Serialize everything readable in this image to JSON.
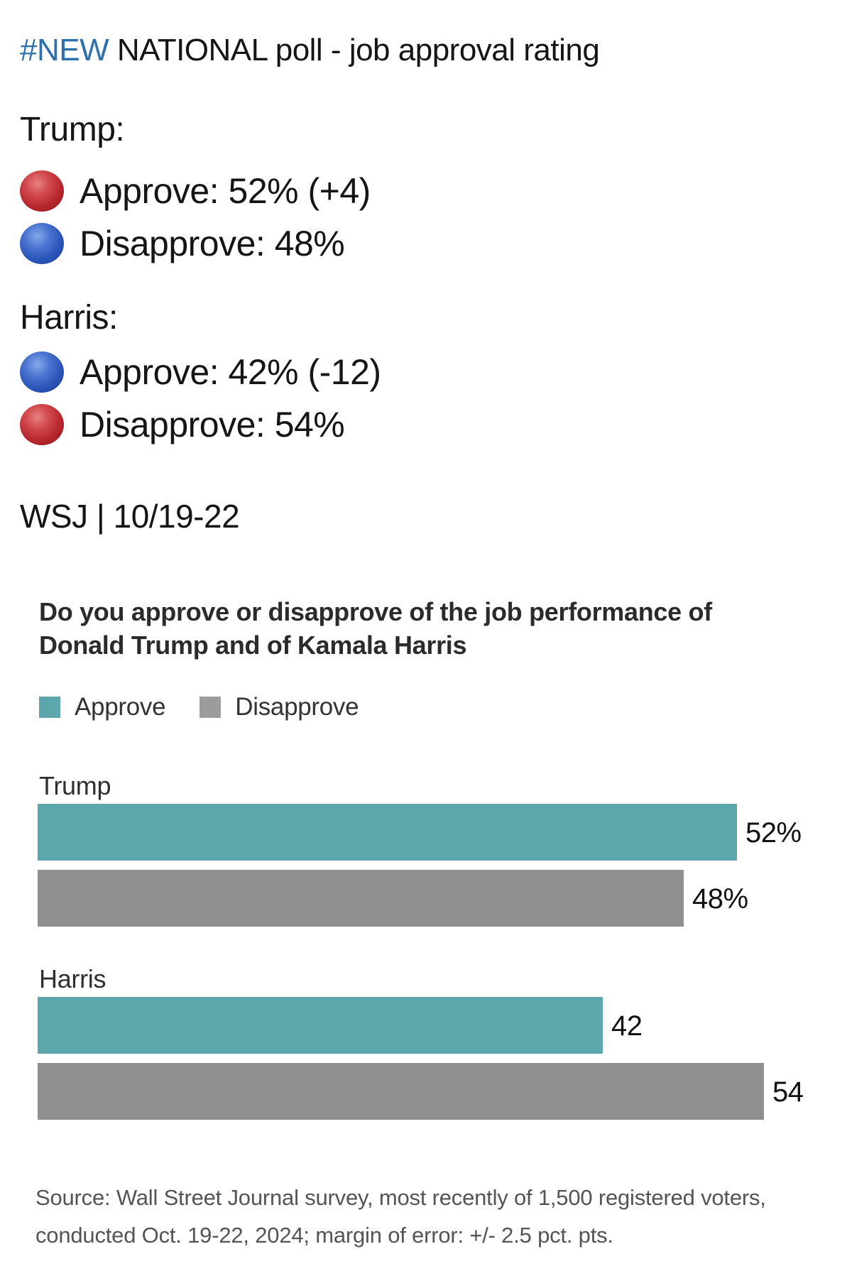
{
  "header": {
    "hashtag": "#NEW",
    "rest": " NATIONAL poll - job approval rating",
    "hashtag_color": "#2e6fad"
  },
  "summary": {
    "trump_label": "Trump:",
    "trump_rows": [
      {
        "icon": "red-circle-icon",
        "text": "Approve: 52% (+4)"
      },
      {
        "icon": "blue-circle-icon",
        "text": "Disapprove: 48%"
      }
    ],
    "harris_label": "Harris:",
    "harris_rows": [
      {
        "icon": "blue-circle-icon",
        "text": "Approve: 42% (-12)"
      },
      {
        "icon": "red-circle-icon",
        "text": "Disapprove: 54%"
      }
    ]
  },
  "wsj_line": "WSJ | 10/19-22",
  "chart_data": {
    "type": "bar",
    "orientation": "horizontal",
    "title": "Do you approve or disapprove of the job performance of Donald Trump and of Kamala Harris",
    "categories": [
      "Trump",
      "Harris"
    ],
    "series": [
      {
        "name": "Approve",
        "values": [
          52,
          42
        ],
        "labels": [
          "52%",
          "42"
        ],
        "color": "#5ba7ab"
      },
      {
        "name": "Disapprove",
        "values": [
          48,
          54
        ],
        "labels": [
          "48%",
          "54"
        ],
        "color": "#8f8f8f"
      }
    ],
    "legend": [
      {
        "label": "Approve",
        "color": "#5ba7ab"
      },
      {
        "label": "Disapprove",
        "color": "#9c9c9c"
      }
    ],
    "axis": "none",
    "xlim": [
      0,
      100
    ],
    "grid": false,
    "footnote": "Source: Wall Street Journal survey, most recently of 1,500 registered voters, conducted Oct. 19-22, 2024; margin of error: +/- 2.5 pct. pts."
  }
}
